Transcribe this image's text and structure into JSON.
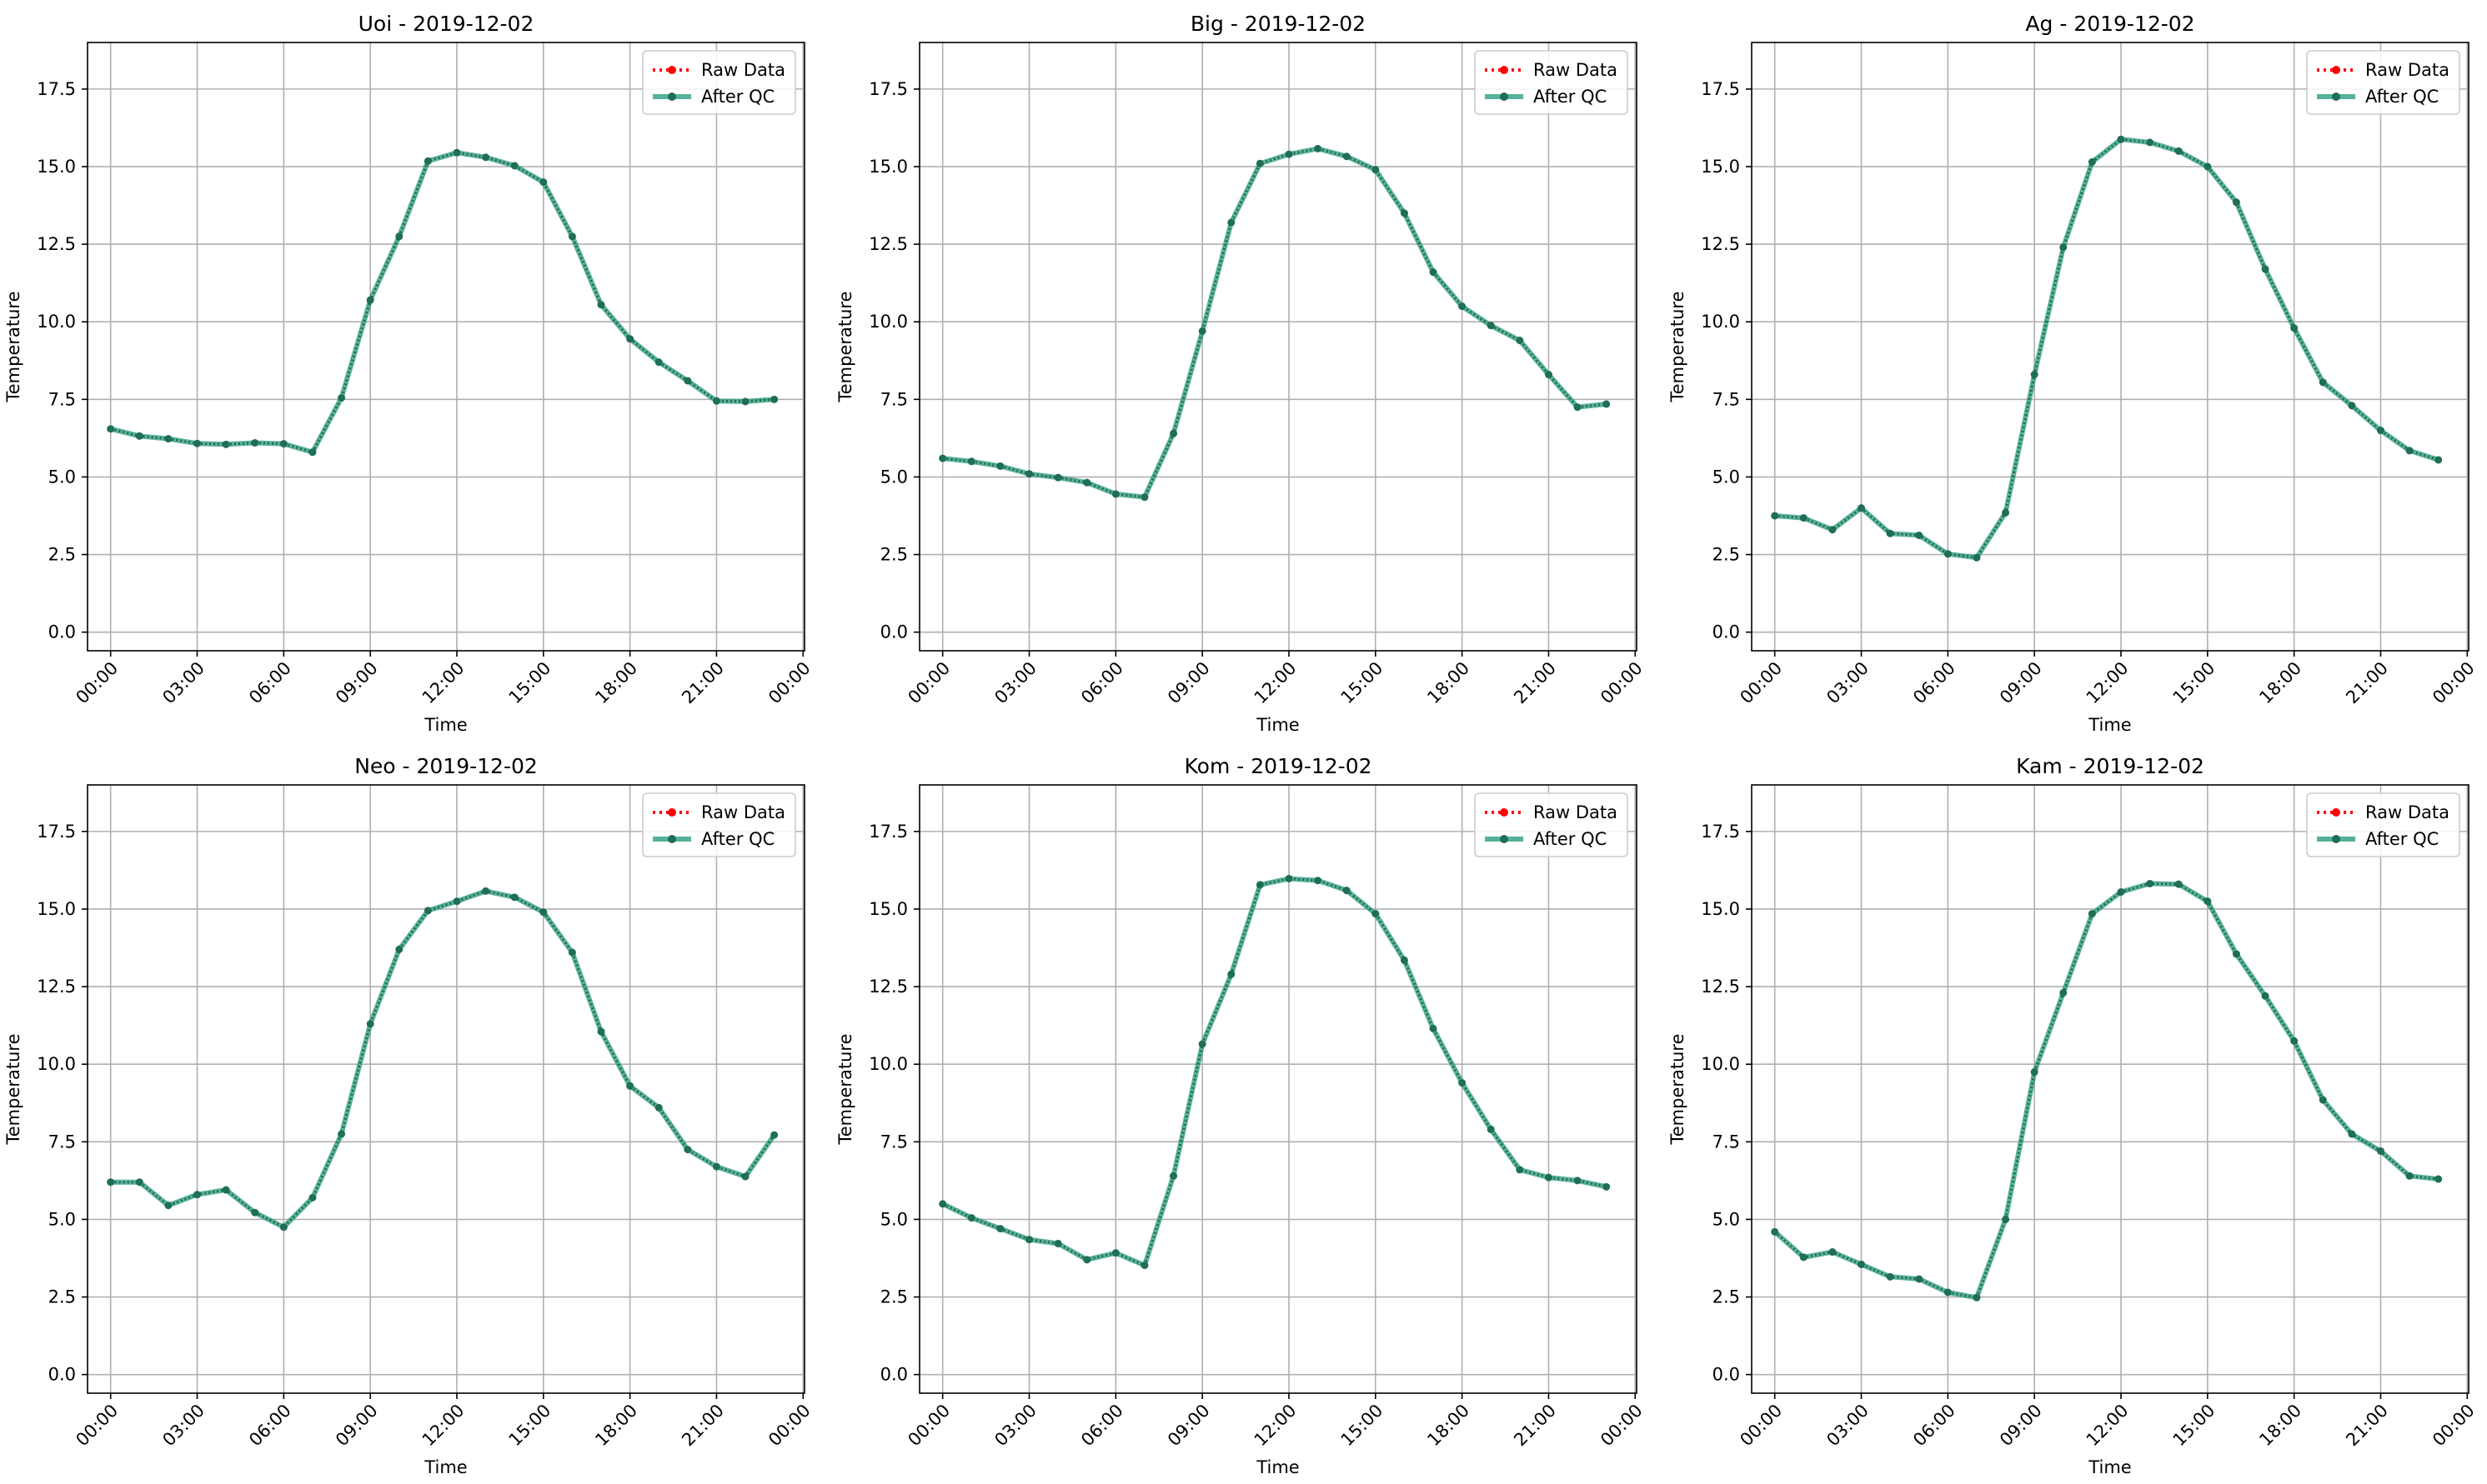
{
  "chart_data": [
    {
      "type": "line",
      "title": "Uoi - 2019-12-02",
      "xlabel": "Time",
      "ylabel": "Temperature",
      "xlim": [
        -0.8,
        24.05
      ],
      "ylim": [
        -0.6,
        19.0
      ],
      "grid": true,
      "legend_placement": "top-right",
      "xticks": [
        "00:00",
        "03:00",
        "06:00",
        "09:00",
        "12:00",
        "15:00",
        "18:00",
        "21:00",
        "00:00"
      ],
      "yticks": [
        "0.0",
        "2.5",
        "5.0",
        "7.5",
        "10.0",
        "12.5",
        "15.0",
        "17.5"
      ],
      "x_hours": [
        0,
        1,
        2,
        3,
        4,
        5,
        6,
        7,
        8,
        9,
        10,
        11,
        12,
        13,
        14,
        15,
        16,
        17,
        18,
        19,
        20,
        21,
        22,
        23
      ],
      "series": [
        {
          "name": "Raw Data",
          "color": "#ff0000",
          "values": [
            6.55,
            6.32,
            6.23,
            6.08,
            6.05,
            6.1,
            6.07,
            5.8,
            7.55,
            10.7,
            12.75,
            15.18,
            15.45,
            15.3,
            15.03,
            14.5,
            12.75,
            10.55,
            9.45,
            8.7,
            8.1,
            7.45,
            7.43,
            7.5
          ]
        },
        {
          "name": "After QC",
          "color": "#2a9d80",
          "values": [
            6.55,
            6.32,
            6.23,
            6.08,
            6.05,
            6.1,
            6.07,
            5.8,
            7.55,
            10.7,
            12.75,
            15.18,
            15.45,
            15.3,
            15.03,
            14.5,
            12.75,
            10.55,
            9.45,
            8.7,
            8.1,
            7.45,
            7.43,
            7.5
          ]
        }
      ]
    },
    {
      "type": "line",
      "title": "Big - 2019-12-02",
      "xlabel": "Time",
      "ylabel": "Temperature",
      "xlim": [
        -0.8,
        24.05
      ],
      "ylim": [
        -0.6,
        19.0
      ],
      "grid": true,
      "legend_placement": "top-right",
      "xticks": [
        "00:00",
        "03:00",
        "06:00",
        "09:00",
        "12:00",
        "15:00",
        "18:00",
        "21:00",
        "00:00"
      ],
      "yticks": [
        "0.0",
        "2.5",
        "5.0",
        "7.5",
        "10.0",
        "12.5",
        "15.0",
        "17.5"
      ],
      "x_hours": [
        0,
        1,
        2,
        3,
        4,
        5,
        6,
        7,
        8,
        9,
        10,
        11,
        12,
        13,
        14,
        15,
        16,
        17,
        18,
        19,
        20,
        21,
        22,
        23
      ],
      "series": [
        {
          "name": "Raw Data",
          "color": "#ff0000",
          "values": [
            5.6,
            5.5,
            5.35,
            5.1,
            4.98,
            4.82,
            4.45,
            4.35,
            6.4,
            9.7,
            13.2,
            15.1,
            15.4,
            15.58,
            15.33,
            14.9,
            13.5,
            11.6,
            10.5,
            9.88,
            9.4,
            8.3,
            7.25,
            7.35
          ]
        },
        {
          "name": "After QC",
          "color": "#2a9d80",
          "values": [
            5.6,
            5.5,
            5.35,
            5.1,
            4.98,
            4.82,
            4.45,
            4.35,
            6.4,
            9.7,
            13.2,
            15.1,
            15.4,
            15.58,
            15.33,
            14.9,
            13.5,
            11.6,
            10.5,
            9.88,
            9.4,
            8.3,
            7.25,
            7.35
          ]
        }
      ]
    },
    {
      "type": "line",
      "title": "Ag - 2019-12-02",
      "xlabel": "Time",
      "ylabel": "Temperature",
      "xlim": [
        -0.8,
        24.05
      ],
      "ylim": [
        -0.6,
        19.0
      ],
      "grid": true,
      "legend_placement": "top-right",
      "xticks": [
        "00:00",
        "03:00",
        "06:00",
        "09:00",
        "12:00",
        "15:00",
        "18:00",
        "21:00",
        "00:00"
      ],
      "yticks": [
        "0.0",
        "2.5",
        "5.0",
        "7.5",
        "10.0",
        "12.5",
        "15.0",
        "17.5"
      ],
      "x_hours": [
        0,
        1,
        2,
        3,
        4,
        5,
        6,
        7,
        8,
        9,
        10,
        11,
        12,
        13,
        14,
        15,
        16,
        17,
        18,
        19,
        20,
        21,
        22,
        23
      ],
      "series": [
        {
          "name": "Raw Data",
          "color": "#ff0000",
          "values": [
            3.75,
            3.68,
            3.3,
            4.0,
            3.18,
            3.12,
            2.52,
            2.4,
            3.85,
            8.3,
            12.4,
            15.15,
            15.88,
            15.78,
            15.5,
            15.0,
            13.85,
            11.7,
            9.8,
            8.05,
            7.3,
            6.5,
            5.85,
            5.55
          ]
        },
        {
          "name": "After QC",
          "color": "#2a9d80",
          "values": [
            3.75,
            3.68,
            3.3,
            4.0,
            3.18,
            3.12,
            2.52,
            2.4,
            3.85,
            8.3,
            12.4,
            15.15,
            15.88,
            15.78,
            15.5,
            15.0,
            13.85,
            11.7,
            9.8,
            8.05,
            7.3,
            6.5,
            5.85,
            5.55
          ]
        }
      ]
    },
    {
      "type": "line",
      "title": "Neo - 2019-12-02",
      "xlabel": "Time",
      "ylabel": "Temperature",
      "xlim": [
        -0.8,
        24.05
      ],
      "ylim": [
        -0.6,
        19.0
      ],
      "grid": true,
      "legend_placement": "top-right",
      "xticks": [
        "00:00",
        "03:00",
        "06:00",
        "09:00",
        "12:00",
        "15:00",
        "18:00",
        "21:00",
        "00:00"
      ],
      "yticks": [
        "0.0",
        "2.5",
        "5.0",
        "7.5",
        "10.0",
        "12.5",
        "15.0",
        "17.5"
      ],
      "x_hours": [
        0,
        1,
        2,
        3,
        4,
        5,
        6,
        7,
        8,
        9,
        10,
        11,
        12,
        13,
        14,
        15,
        16,
        17,
        18,
        19,
        20,
        21,
        22,
        23
      ],
      "series": [
        {
          "name": "Raw Data",
          "color": "#ff0000",
          "values": [
            6.2,
            6.2,
            5.45,
            5.8,
            5.95,
            5.22,
            4.75,
            5.7,
            7.75,
            11.3,
            13.7,
            14.95,
            15.25,
            15.58,
            15.38,
            14.9,
            13.6,
            11.05,
            9.3,
            8.6,
            7.25,
            6.7,
            6.38,
            7.72
          ]
        },
        {
          "name": "After QC",
          "color": "#2a9d80",
          "values": [
            6.2,
            6.2,
            5.45,
            5.8,
            5.95,
            5.22,
            4.75,
            5.7,
            7.75,
            11.3,
            13.7,
            14.95,
            15.25,
            15.58,
            15.38,
            14.9,
            13.6,
            11.05,
            9.3,
            8.6,
            7.25,
            6.7,
            6.38,
            7.72
          ]
        }
      ]
    },
    {
      "type": "line",
      "title": "Kom - 2019-12-02",
      "xlabel": "Time",
      "ylabel": "Temperature",
      "xlim": [
        -0.8,
        24.05
      ],
      "ylim": [
        -0.6,
        19.0
      ],
      "grid": true,
      "legend_placement": "top-right",
      "xticks": [
        "00:00",
        "03:00",
        "06:00",
        "09:00",
        "12:00",
        "15:00",
        "18:00",
        "21:00",
        "00:00"
      ],
      "yticks": [
        "0.0",
        "2.5",
        "5.0",
        "7.5",
        "10.0",
        "12.5",
        "15.0",
        "17.5"
      ],
      "x_hours": [
        0,
        1,
        2,
        3,
        4,
        5,
        6,
        7,
        8,
        9,
        10,
        11,
        12,
        13,
        14,
        15,
        16,
        17,
        18,
        19,
        20,
        21,
        22,
        23
      ],
      "series": [
        {
          "name": "Raw Data",
          "color": "#ff0000",
          "values": [
            5.5,
            5.05,
            4.7,
            4.35,
            4.22,
            3.7,
            3.92,
            3.52,
            6.4,
            10.65,
            12.9,
            15.78,
            15.98,
            15.92,
            15.6,
            14.85,
            13.35,
            11.15,
            9.4,
            7.9,
            6.6,
            6.35,
            6.25,
            6.05
          ]
        },
        {
          "name": "After QC",
          "color": "#2a9d80",
          "values": [
            5.5,
            5.05,
            4.7,
            4.35,
            4.22,
            3.7,
            3.92,
            3.52,
            6.4,
            10.65,
            12.9,
            15.78,
            15.98,
            15.92,
            15.6,
            14.85,
            13.35,
            11.15,
            9.4,
            7.9,
            6.6,
            6.35,
            6.25,
            6.05
          ]
        }
      ]
    },
    {
      "type": "line",
      "title": "Kam - 2019-12-02",
      "xlabel": "Time",
      "ylabel": "Temperature",
      "xlim": [
        -0.8,
        24.05
      ],
      "ylim": [
        -0.6,
        19.0
      ],
      "grid": true,
      "legend_placement": "top-right",
      "xticks": [
        "00:00",
        "03:00",
        "06:00",
        "09:00",
        "12:00",
        "15:00",
        "18:00",
        "21:00",
        "00:00"
      ],
      "yticks": [
        "0.0",
        "2.5",
        "5.0",
        "7.5",
        "10.0",
        "12.5",
        "15.0",
        "17.5"
      ],
      "x_hours": [
        0,
        1,
        2,
        3,
        4,
        5,
        6,
        7,
        8,
        9,
        10,
        11,
        12,
        13,
        14,
        15,
        16,
        17,
        18,
        19,
        20,
        21,
        22,
        23
      ],
      "series": [
        {
          "name": "Raw Data",
          "color": "#ff0000",
          "values": [
            4.6,
            3.78,
            3.95,
            3.55,
            3.15,
            3.08,
            2.65,
            2.48,
            5.0,
            9.75,
            12.3,
            14.85,
            15.55,
            15.82,
            15.8,
            15.25,
            13.55,
            12.2,
            10.75,
            8.85,
            7.75,
            7.2,
            6.4,
            6.3
          ]
        },
        {
          "name": "After QC",
          "color": "#2a9d80",
          "values": [
            4.6,
            3.78,
            3.95,
            3.55,
            3.15,
            3.08,
            2.65,
            2.48,
            5.0,
            9.75,
            12.3,
            14.85,
            15.55,
            15.82,
            15.8,
            15.25,
            13.55,
            12.2,
            10.75,
            8.85,
            7.75,
            7.2,
            6.4,
            6.3
          ]
        }
      ]
    }
  ]
}
